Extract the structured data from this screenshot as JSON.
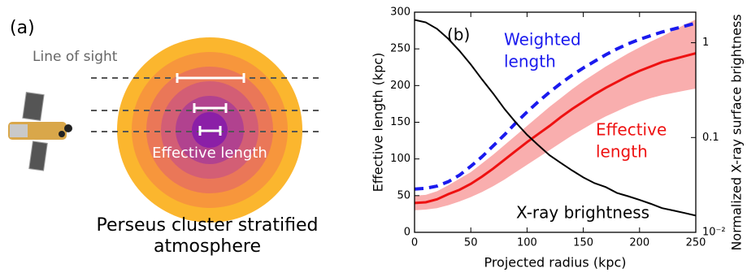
{
  "panel_a": {
    "label": "(a)",
    "line_of_sight": "Line of sight",
    "effective_length": "Effective length",
    "caption": [
      "Perseus cluster stratified",
      "atmosphere"
    ]
  },
  "chart_data": {
    "type": "line",
    "panel_label": "(b)",
    "xlabel": "Projected radius (kpc)",
    "ylabel": "Effective length (kpc)",
    "y2label": "Normalized X-ray surface brightness",
    "x": [
      0,
      10,
      20,
      30,
      40,
      50,
      60,
      70,
      80,
      90,
      100,
      110,
      120,
      130,
      140,
      150,
      160,
      170,
      180,
      190,
      200,
      210,
      220,
      230,
      240,
      250
    ],
    "band": {
      "color": "#f9aeae",
      "lower": [
        30,
        31,
        33,
        37,
        42,
        48,
        55,
        63,
        72,
        82,
        92,
        102,
        112,
        122,
        132,
        141,
        150,
        158,
        165,
        172,
        178,
        183,
        187,
        190,
        193,
        196
      ],
      "upper": [
        50,
        51,
        56,
        64,
        73,
        82,
        94,
        106,
        119,
        132,
        145,
        158,
        171,
        183,
        195,
        206,
        216,
        226,
        235,
        244,
        252,
        260,
        267,
        275,
        283,
        290
      ]
    },
    "series": [
      {
        "label_lines": [
          "Effective",
          "length"
        ],
        "color": "#ee1111",
        "dash": false,
        "values": [
          40,
          41,
          45,
          52,
          58,
          66,
          76,
          87,
          99,
          111,
          123,
          134,
          145,
          157,
          168,
          178,
          188,
          197,
          205,
          213,
          220,
          226,
          232,
          236,
          240,
          244
        ]
      },
      {
        "label_lines": [
          "Weighted",
          "length"
        ],
        "color": "#1a1aee",
        "dash": true,
        "values": [
          59,
          60,
          63,
          69,
          78,
          90,
          103,
          118,
          133,
          149,
          164,
          178,
          191,
          203,
          214,
          224,
          233,
          242,
          250,
          257,
          263,
          268,
          273,
          277,
          281,
          285
        ]
      },
      {
        "label_lines": [
          "X-ray brightness"
        ],
        "color": "#000000",
        "dash": false,
        "axis": "y2",
        "values": [
          1.74,
          1.64,
          1.4,
          1.1,
          0.82,
          0.59,
          0.41,
          0.29,
          0.2,
          0.144,
          0.107,
          0.083,
          0.065,
          0.054,
          0.045,
          0.038,
          0.033,
          0.03,
          0.026,
          0.024,
          0.022,
          0.02,
          0.018,
          0.017,
          0.016,
          0.015
        ]
      }
    ],
    "xlim": [
      0,
      250
    ],
    "xticks": [
      0,
      50,
      100,
      150,
      200,
      250
    ],
    "ylim": [
      0,
      300
    ],
    "yticks": [
      0,
      50,
      100,
      150,
      200,
      250,
      300
    ],
    "y2lim": [
      0.01,
      2.1
    ],
    "y2log": true,
    "y2ticks": [
      {
        "value": 0.01,
        "label": "10⁻²"
      },
      0.1,
      1
    ]
  }
}
